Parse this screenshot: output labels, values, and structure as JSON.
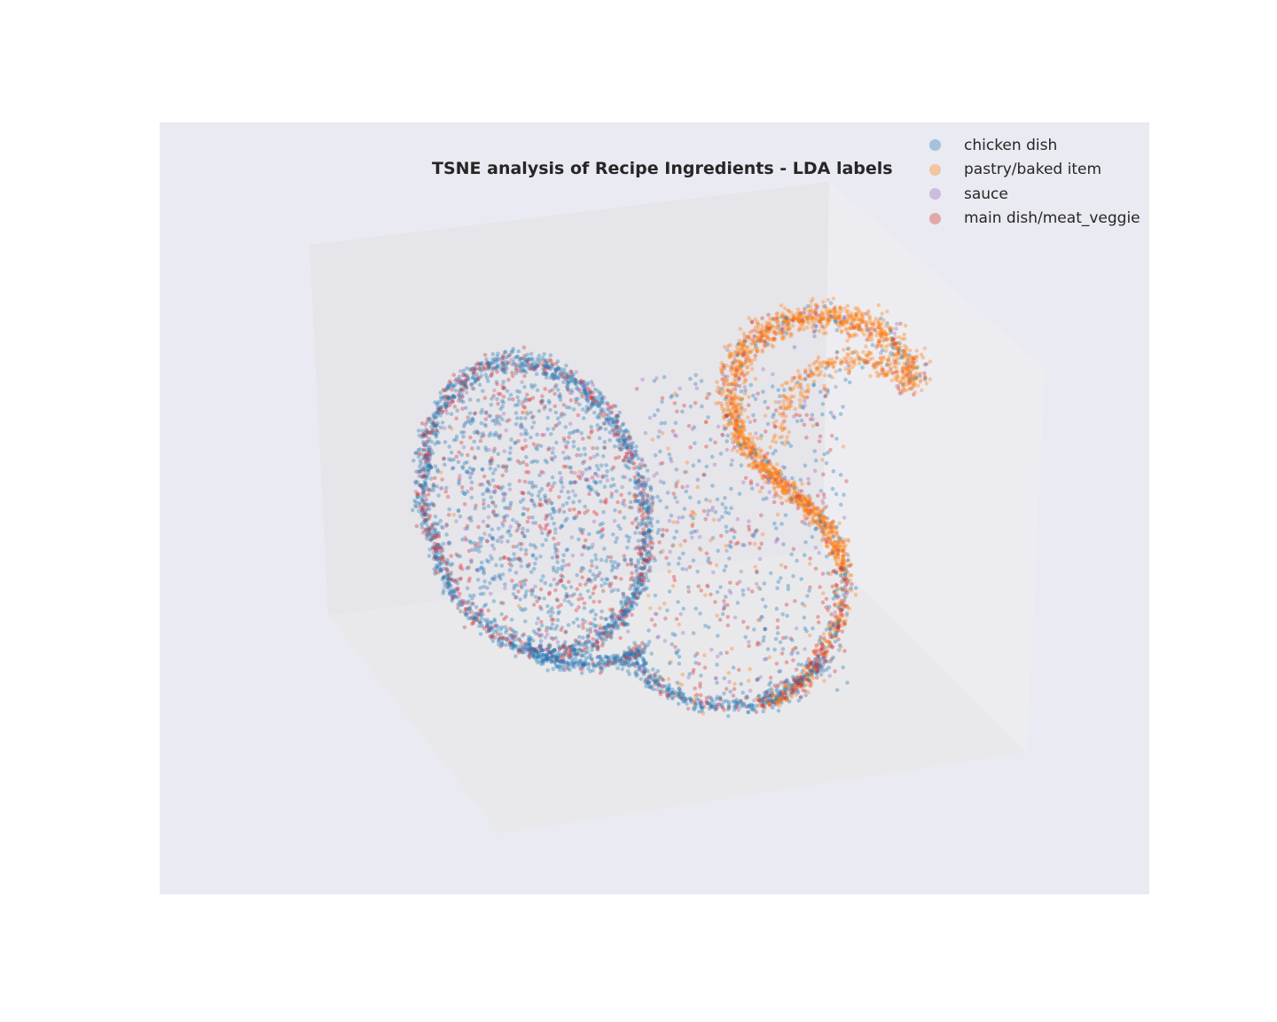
{
  "chart_data": {
    "type": "scatter",
    "projection": "3d",
    "title": "TSNE analysis of Recipe Ingredients - LDA labels",
    "xlabel": "",
    "ylabel": "",
    "zlabel": "",
    "grid": false,
    "legend_position": "top-right",
    "point_alpha": 0.35,
    "series": [
      {
        "name": "chicken dish",
        "color": "#1f77b4"
      },
      {
        "name": "pastry/baked item",
        "color": "#ff7f0e"
      },
      {
        "name": "sauce",
        "color": "#9467bd"
      },
      {
        "name": "main dish/meat_veggie",
        "color": "#d62728"
      }
    ]
  },
  "colors": {
    "axes_background": "#eaeaf2",
    "pane_back": "#e6e5ea",
    "pane_side": "#ededf1",
    "pane_floor": "#e9e9ec",
    "text": "#262626"
  }
}
